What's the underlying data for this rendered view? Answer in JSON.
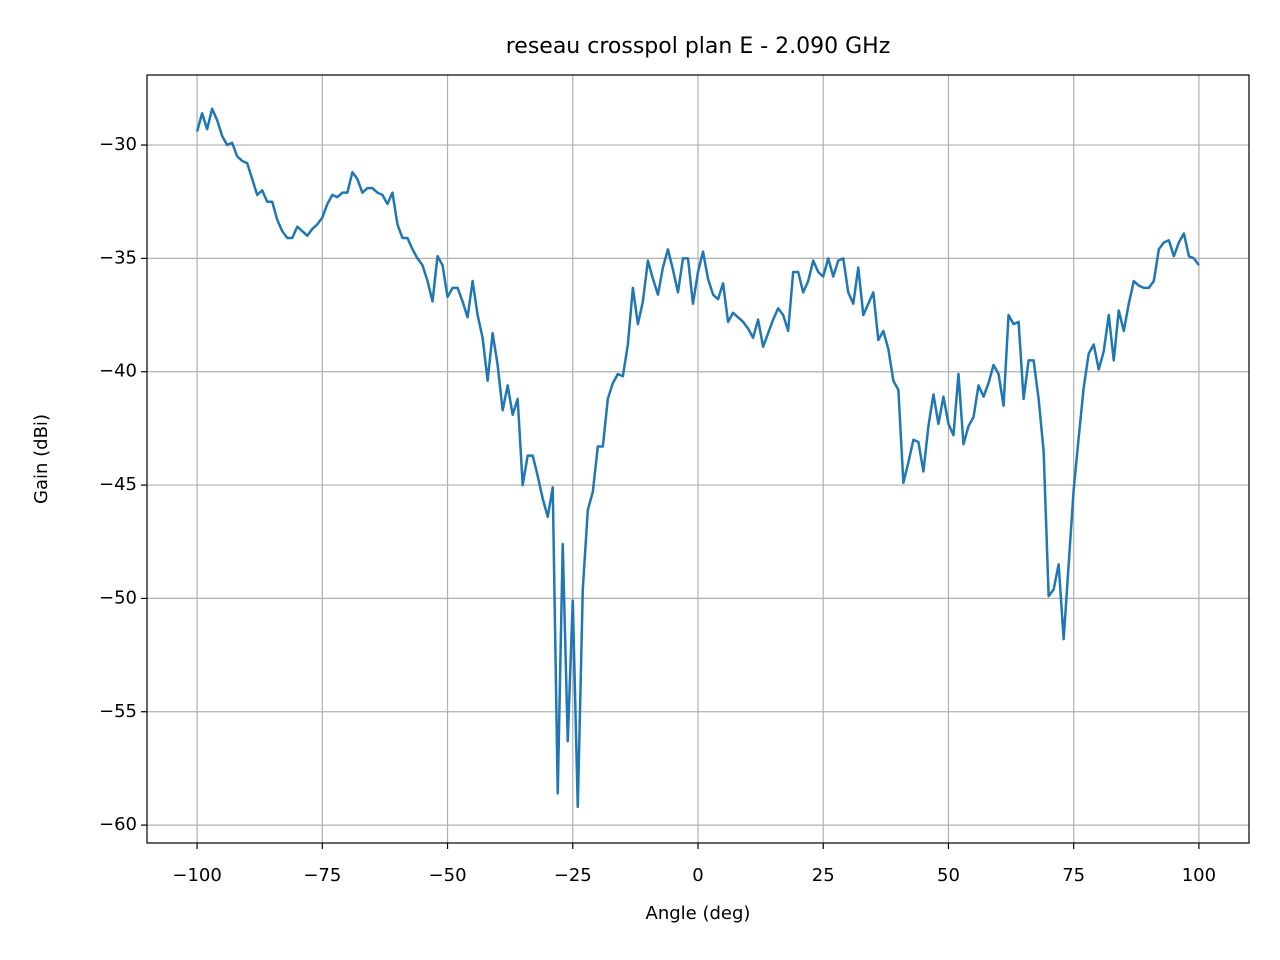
{
  "chart_data": {
    "type": "line",
    "title": "reseau crosspol plan E - 2.090 GHz",
    "xlabel": "Angle (deg)",
    "ylabel": "Gain (dBi)",
    "color": "#1f77b4",
    "grid": true,
    "xlim": [
      -110,
      110
    ],
    "ylim": [
      -60.79,
      -26.91
    ],
    "xticks": [
      {
        "value": -100,
        "label": "−100"
      },
      {
        "value": -75,
        "label": "−75"
      },
      {
        "value": -50,
        "label": "−50"
      },
      {
        "value": -25,
        "label": "−25"
      },
      0,
      25,
      50,
      75,
      100
    ],
    "yticks": [
      {
        "value": -30,
        "label": "−30"
      },
      {
        "value": -35,
        "label": "−35"
      },
      {
        "value": -40,
        "label": "−40"
      },
      {
        "value": -45,
        "label": "−45"
      },
      {
        "value": -50,
        "label": "−50"
      },
      {
        "value": -55,
        "label": "−55"
      },
      {
        "value": -60,
        "label": "−60"
      }
    ],
    "x": [
      -100,
      -99,
      -98,
      -97,
      -96,
      -95,
      -94,
      -93,
      -92,
      -91,
      -90,
      -89,
      -88,
      -87,
      -86,
      -85,
      -84,
      -83,
      -82,
      -81,
      -80,
      -79,
      -78,
      -77,
      -76,
      -75,
      -74,
      -73,
      -72,
      -71,
      -70,
      -69,
      -68,
      -67,
      -66,
      -65,
      -64,
      -63,
      -62,
      -61,
      -60,
      -59,
      -58,
      -57,
      -56,
      -55,
      -54,
      -53,
      -52,
      -51,
      -50,
      -49,
      -48,
      -47,
      -46,
      -45,
      -44,
      -43,
      -42,
      -41,
      -40,
      -39,
      -38,
      -37,
      -36,
      -35,
      -34,
      -33,
      -32,
      -31,
      -30,
      -29,
      -28,
      -27,
      -26,
      -25,
      -24,
      -23,
      -22,
      -21,
      -20,
      -19,
      -18,
      -17,
      -16,
      -15,
      -14,
      -13,
      -12,
      -11,
      -10,
      -9,
      -8,
      -7,
      -6,
      -5,
      -4,
      -3,
      -2,
      -1,
      0,
      1,
      2,
      3,
      4,
      5,
      6,
      7,
      8,
      9,
      10,
      11,
      12,
      13,
      14,
      15,
      16,
      17,
      18,
      19,
      20,
      21,
      22,
      23,
      24,
      25,
      26,
      27,
      28,
      29,
      30,
      31,
      32,
      33,
      34,
      35,
      36,
      37,
      38,
      39,
      40,
      41,
      42,
      43,
      44,
      45,
      46,
      47,
      48,
      49,
      50,
      51,
      52,
      53,
      54,
      55,
      56,
      57,
      58,
      59,
      60,
      61,
      62,
      63,
      64,
      65,
      66,
      67,
      68,
      69,
      70,
      71,
      72,
      73,
      74,
      75,
      76,
      77,
      78,
      79,
      80,
      81,
      82,
      83,
      84,
      85,
      86,
      87,
      88,
      89,
      90,
      91,
      92,
      93,
      94,
      95,
      96,
      97,
      98,
      99,
      100
    ],
    "values": [
      -29.4,
      -28.6,
      -29.3,
      -28.4,
      -28.9,
      -29.6,
      -30.0,
      -29.9,
      -30.5,
      -30.7,
      -30.8,
      -31.5,
      -32.2,
      -32.0,
      -32.5,
      -32.5,
      -33.3,
      -33.8,
      -34.1,
      -34.1,
      -33.6,
      -33.8,
      -34.0,
      -33.7,
      -33.5,
      -33.2,
      -32.6,
      -32.2,
      -32.3,
      -32.1,
      -32.1,
      -31.2,
      -31.5,
      -32.1,
      -31.9,
      -31.9,
      -32.1,
      -32.2,
      -32.6,
      -32.1,
      -33.5,
      -34.1,
      -34.1,
      -34.6,
      -35.0,
      -35.3,
      -36.0,
      -36.9,
      -34.9,
      -35.3,
      -36.7,
      -36.3,
      -36.3,
      -36.9,
      -37.6,
      -36.0,
      -37.5,
      -38.5,
      -40.4,
      -38.3,
      -39.7,
      -41.7,
      -40.6,
      -41.9,
      -41.2,
      -45.0,
      -43.7,
      -43.7,
      -44.6,
      -45.6,
      -46.4,
      -45.1,
      -58.6,
      -47.6,
      -56.3,
      -50.1,
      -59.2,
      -49.6,
      -46.1,
      -45.3,
      -43.3,
      -43.3,
      -41.2,
      -40.5,
      -40.1,
      -40.2,
      -38.8,
      -36.3,
      -37.9,
      -36.9,
      -35.1,
      -35.9,
      -36.6,
      -35.4,
      -34.6,
      -35.5,
      -36.5,
      -35.0,
      -35.0,
      -37.0,
      -35.6,
      -34.7,
      -35.9,
      -36.6,
      -36.8,
      -36.1,
      -37.8,
      -37.4,
      -37.6,
      -37.8,
      -38.1,
      -38.5,
      -37.7,
      -38.9,
      -38.3,
      -37.7,
      -37.2,
      -37.5,
      -38.2,
      -35.6,
      -35.6,
      -36.5,
      -36.0,
      -35.1,
      -35.6,
      -35.8,
      -35.0,
      -35.8,
      -35.1,
      -35.0,
      -36.5,
      -37.0,
      -35.4,
      -37.5,
      -37.0,
      -36.5,
      -38.6,
      -38.2,
      -39.0,
      -40.4,
      -40.8,
      -44.9,
      -44.0,
      -43.0,
      -43.1,
      -44.4,
      -42.4,
      -41.0,
      -42.3,
      -41.1,
      -42.3,
      -42.8,
      -40.1,
      -43.2,
      -42.4,
      -42.0,
      -40.6,
      -41.1,
      -40.5,
      -39.7,
      -40.1,
      -41.5,
      -37.5,
      -37.9,
      -37.8,
      -41.2,
      -39.5,
      -39.5,
      -41.2,
      -43.5,
      -49.9,
      -49.6,
      -48.5,
      -51.8,
      -48.5,
      -45.2,
      -42.9,
      -40.7,
      -39.2,
      -38.8,
      -39.9,
      -39.1,
      -37.5,
      -39.5,
      -37.3,
      -38.2,
      -37.0,
      -36.0,
      -36.2,
      -36.3,
      -36.3,
      -36.0,
      -34.6,
      -34.3,
      -34.2,
      -34.9,
      -34.3,
      -33.9,
      -34.9,
      -35.0,
      -35.3
    ]
  }
}
